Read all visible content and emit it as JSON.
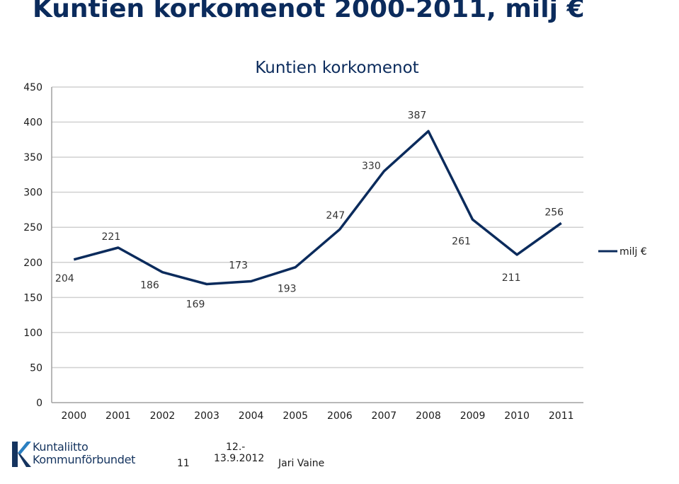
{
  "slide": {
    "title": "Kuntien korkomenot 2000-2011, milj €"
  },
  "colors": {
    "line": "#0b2b5c",
    "title": "#0b2b5c",
    "grid": "#d0d0d0"
  },
  "chart_data": {
    "type": "line",
    "title": "Kuntien korkomenot",
    "xlabel": "",
    "ylabel": "",
    "categories": [
      "2000",
      "2001",
      "2002",
      "2003",
      "2004",
      "2005",
      "2006",
      "2007",
      "2008",
      "2009",
      "2010",
      "2011"
    ],
    "series": [
      {
        "name": "milj €",
        "values": [
          204,
          221,
          186,
          169,
          173,
          193,
          247,
          330,
          387,
          261,
          211,
          256
        ]
      }
    ],
    "data_labels": [
      "204",
      "221",
      "186",
      "169",
      "173",
      "193",
      "247",
      "330",
      "387",
      "261",
      "211",
      "256"
    ],
    "ylim": [
      0,
      450
    ],
    "yticks": [
      0,
      50,
      100,
      150,
      200,
      250,
      300,
      350,
      400,
      450
    ],
    "grid": true,
    "legend_position": "right"
  },
  "footer": {
    "logo_line1": "Kuntaliitto",
    "logo_line2": "Kommunförbundet",
    "page_number": "11",
    "date_line1": "12.-",
    "date_line2": "13.9.2012",
    "author": "Jari Vaine"
  }
}
